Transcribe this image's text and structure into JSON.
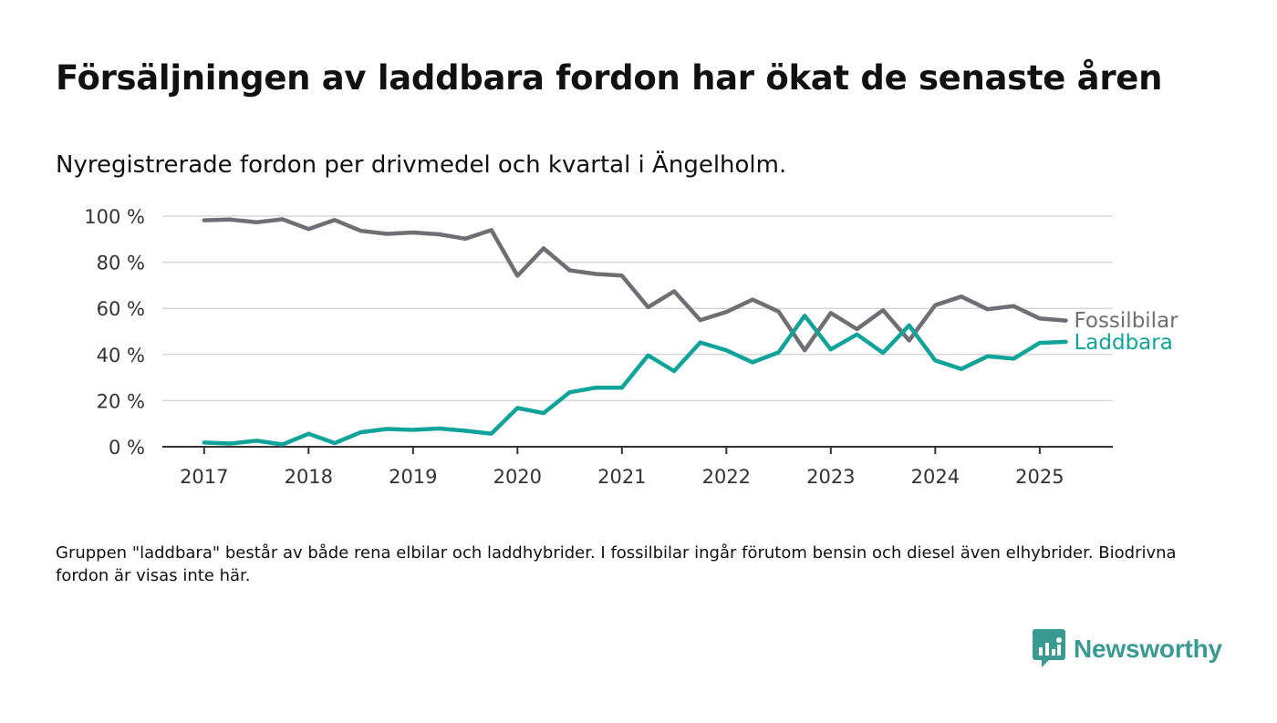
{
  "title": "Försäljningen av laddbara fordon har ökat de senaste åren",
  "subtitle": "Nyregistrerade fordon per drivmedel och kvartal i Ängelholm.",
  "footnote": "Gruppen \"laddbara\" består av både rena elbilar och laddhybrider. I fossilbilar ingår förutom bensin och diesel även elhybrider. Biodrivna fordon är visas inte här.",
  "brand": {
    "name": "Newsworthy",
    "icon": "newsworthy-logo-icon",
    "color": "#3a9a92"
  },
  "chart_data": {
    "type": "line",
    "title": "",
    "xlabel": "",
    "ylabel": "",
    "x_ticks": [
      "2017",
      "2018",
      "2019",
      "2020",
      "2021",
      "2022",
      "2023",
      "2024",
      "2025"
    ],
    "y_ticks": [
      "0 %",
      "20 %",
      "40 %",
      "60 %",
      "80 %",
      "100 %"
    ],
    "ylim": [
      0,
      100
    ],
    "xlim": [
      2016.6,
      2025.7
    ],
    "grid": true,
    "x": [
      2017.0,
      2017.25,
      2017.5,
      2017.75,
      2018.0,
      2018.25,
      2018.5,
      2018.75,
      2019.0,
      2019.25,
      2019.5,
      2019.75,
      2020.0,
      2020.25,
      2020.5,
      2020.75,
      2021.0,
      2021.25,
      2021.5,
      2021.75,
      2022.0,
      2022.25,
      2022.5,
      2022.75,
      2023.0,
      2023.25,
      2023.5,
      2023.75,
      2024.0,
      2024.25,
      2024.5,
      2024.75,
      2025.0,
      2025.25
    ],
    "series": [
      {
        "name": "Fossilbilar",
        "color": "#6f6e75",
        "values": [
          98.2,
          98.5,
          97.3,
          98.6,
          94.4,
          98.3,
          93.6,
          92.3,
          92.9,
          92.1,
          90.2,
          93.9,
          74.1,
          86.0,
          76.5,
          74.9,
          74.2,
          60.5,
          67.4,
          54.9,
          58.4,
          63.8,
          58.6,
          41.8,
          58.0,
          51.0,
          59.2,
          46.1,
          61.4,
          65.1,
          59.6,
          61.0,
          55.6,
          54.7
        ]
      },
      {
        "name": "Laddbara",
        "color": "#10a39a",
        "values": [
          1.8,
          1.4,
          2.6,
          1.0,
          5.6,
          1.6,
          6.3,
          7.7,
          7.3,
          7.9,
          6.9,
          5.7,
          16.8,
          14.6,
          23.6,
          25.6,
          25.6,
          39.6,
          32.8,
          45.2,
          41.8,
          36.6,
          40.9,
          56.8,
          42.2,
          48.7,
          40.7,
          52.6,
          37.4,
          33.7,
          39.2,
          38.2,
          45.0,
          45.5
        ]
      }
    ]
  }
}
